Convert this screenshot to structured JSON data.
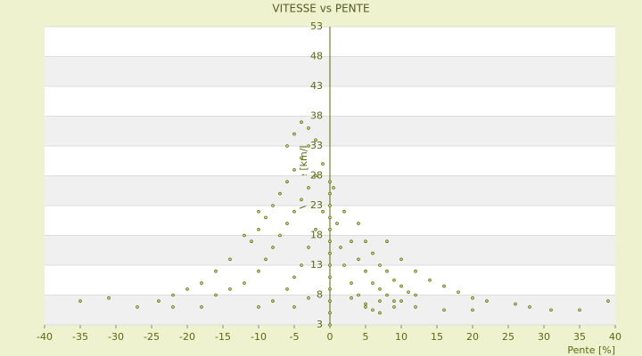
{
  "chart_data": {
    "type": "scatter",
    "title": "VITESSE vs PENTE",
    "x_label": "Pente [%]",
    "y_label": "Vitesse [km/h]",
    "color": "#5b6b00",
    "xlim": [
      -40,
      40
    ],
    "xticks": [
      -40,
      -35,
      -30,
      -25,
      -20,
      -15,
      -10,
      -5,
      0,
      5,
      10,
      15,
      20,
      25,
      30,
      35,
      40
    ],
    "ylim": [
      3,
      53
    ],
    "yticks": [
      3,
      8,
      13,
      18,
      23,
      28,
      33,
      38,
      43,
      48,
      53
    ],
    "x": [
      0.5,
      1,
      1.5,
      2,
      3,
      4,
      5,
      6,
      7,
      2,
      3,
      4,
      5,
      6,
      7,
      8,
      9,
      4,
      5,
      6,
      7,
      8,
      9,
      10,
      11,
      12,
      8,
      10,
      12,
      14,
      16,
      18,
      20,
      22,
      -1,
      -2,
      -3,
      -4,
      -5,
      -6,
      -7,
      -8,
      -9,
      -10,
      -12,
      -14,
      -16,
      -2,
      -3,
      -4,
      -5,
      -6,
      -7,
      -8,
      -9,
      -10,
      -11,
      -3,
      -4,
      -5,
      -6,
      -1,
      -2,
      -3,
      -4,
      -5,
      -6,
      -10,
      -12,
      -14,
      -16,
      -18,
      -20,
      -22,
      -24,
      0,
      0,
      0,
      0,
      0,
      0,
      0,
      0,
      0,
      0,
      0,
      0,
      0,
      -35,
      -31,
      -27,
      -22,
      -18,
      -10,
      -5,
      5,
      9,
      12,
      16,
      20,
      26,
      28,
      31,
      35,
      39,
      -8,
      -3,
      3,
      7,
      10
    ],
    "values": [
      26,
      20,
      16,
      13,
      10,
      8,
      6.5,
      5.5,
      5,
      22,
      17,
      14,
      12,
      10,
      9,
      8,
      7,
      20,
      17,
      15,
      13,
      12,
      10.5,
      9.5,
      8.5,
      8,
      17,
      14,
      12,
      10.5,
      9.5,
      8.5,
      7.5,
      7,
      30,
      28,
      26,
      24,
      22,
      20,
      18,
      16,
      14,
      12,
      10,
      9,
      8,
      34,
      33,
      31,
      29,
      27,
      25,
      23,
      21,
      19,
      17,
      36,
      37,
      35,
      33,
      22,
      19,
      16,
      13,
      11,
      9,
      22,
      18,
      14,
      12,
      10,
      9,
      8,
      7,
      3,
      5,
      7,
      9,
      11,
      13,
      15,
      17,
      19,
      21,
      23,
      25,
      27,
      7,
      7.5,
      6,
      6,
      6,
      6,
      6,
      6,
      6,
      6,
      5.5,
      5.5,
      6.5,
      6,
      5.5,
      5.5,
      7,
      7,
      7.5,
      7.5,
      7,
      7
    ]
  }
}
